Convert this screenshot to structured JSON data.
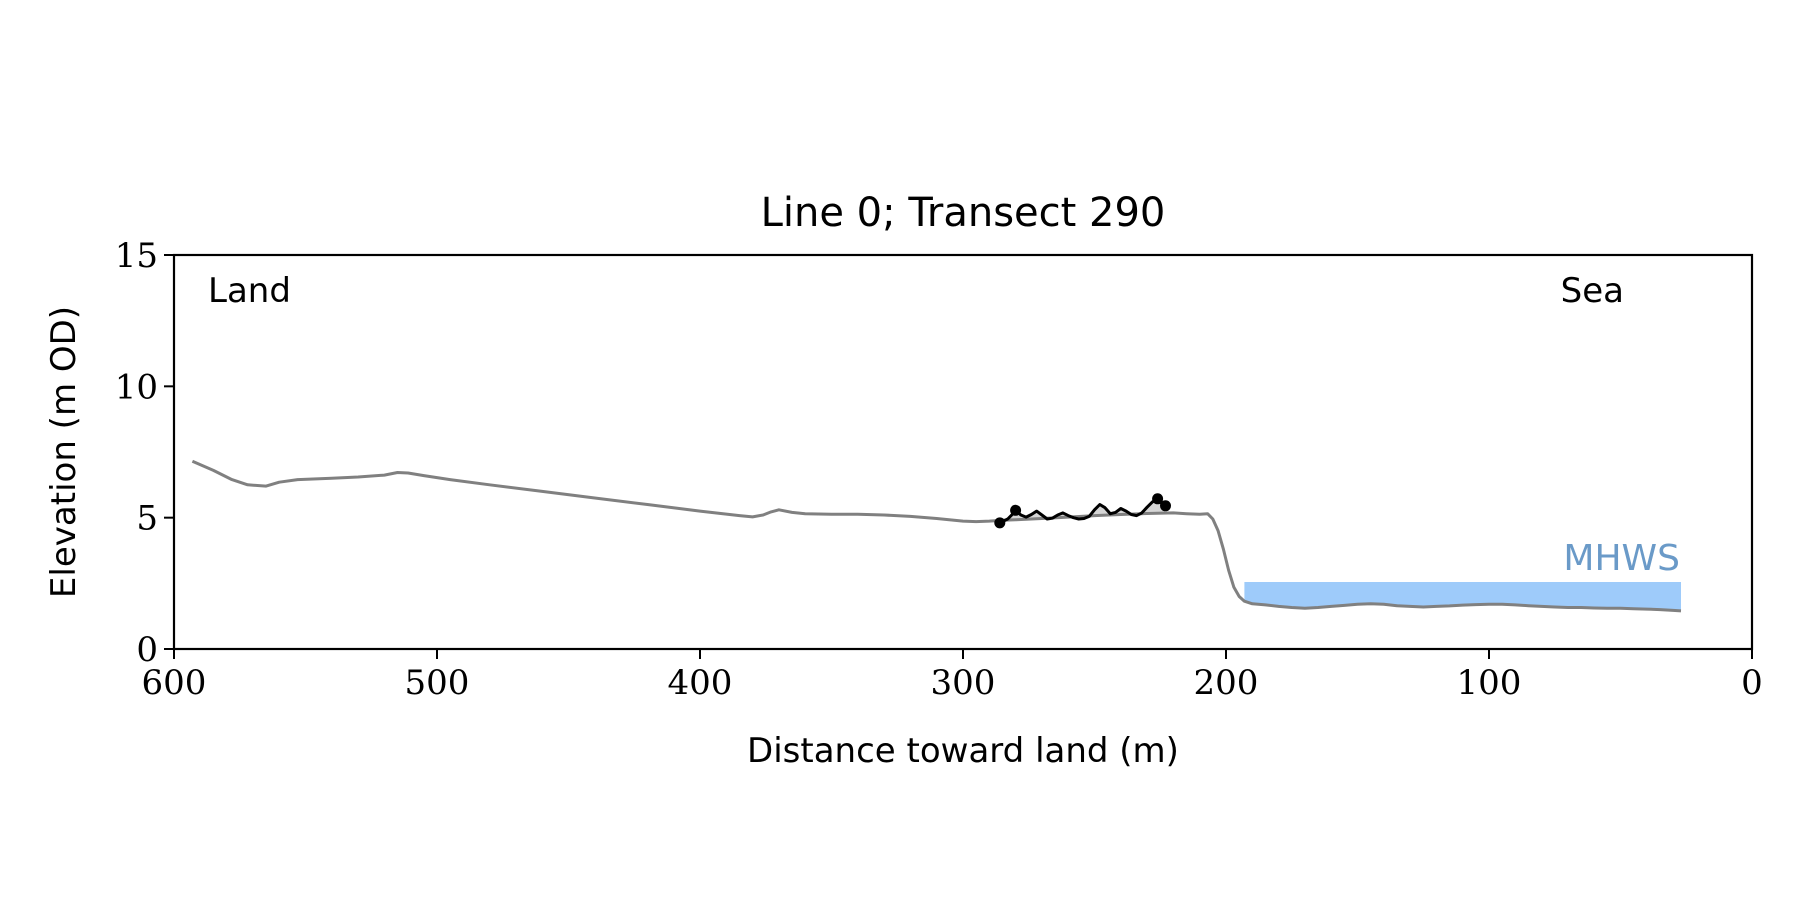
{
  "chart_data": {
    "type": "line",
    "title": "Line 0; Transect 290",
    "xlabel": "Distance toward land (m)",
    "ylabel": "Elevation (m OD)",
    "xlim": [
      600,
      0
    ],
    "ylim": [
      0,
      15
    ],
    "x_ticks": [
      600,
      500,
      400,
      300,
      200,
      100,
      0
    ],
    "y_ticks": [
      0,
      5,
      10,
      15
    ],
    "grid": false,
    "corner_labels": {
      "left": "Land",
      "right": "Sea"
    },
    "mhws": {
      "label": "MHWS",
      "x_start": 193,
      "x_end": 27,
      "level": 2.55
    },
    "colors": {
      "profile": "#808080",
      "highlight": "#000000",
      "mhws_fill": "#9ecbfa",
      "mhws_text": "#6a9ac8",
      "shade": "#cccccc"
    },
    "series": [
      {
        "role": "profile",
        "x": [
          593,
          585,
          578,
          572,
          565,
          560,
          553,
          540,
          530,
          520,
          515,
          511,
          505,
          495,
          480,
          460,
          440,
          420,
          400,
          385,
          380,
          376,
          373,
          370,
          365,
          360,
          350,
          340,
          330,
          320,
          310,
          300,
          295,
          290,
          285,
          280,
          270,
          260,
          250,
          240,
          230,
          220,
          215,
          210,
          207,
          205,
          203,
          201,
          199,
          197,
          195,
          193,
          190,
          185,
          180,
          175,
          170,
          165,
          160,
          155,
          150,
          145,
          140,
          135,
          130,
          125,
          120,
          115,
          110,
          105,
          100,
          95,
          90,
          85,
          80,
          75,
          70,
          65,
          60,
          55,
          50,
          45,
          40,
          35,
          30,
          27
        ],
        "y": [
          7.15,
          6.8,
          6.45,
          6.25,
          6.2,
          6.35,
          6.45,
          6.5,
          6.55,
          6.62,
          6.72,
          6.7,
          6.6,
          6.45,
          6.25,
          6.0,
          5.75,
          5.5,
          5.25,
          5.08,
          5.03,
          5.1,
          5.22,
          5.3,
          5.2,
          5.15,
          5.13,
          5.13,
          5.1,
          5.05,
          4.97,
          4.87,
          4.85,
          4.87,
          4.9,
          4.92,
          4.97,
          5.02,
          5.08,
          5.12,
          5.16,
          5.18,
          5.15,
          5.13,
          5.15,
          4.95,
          4.5,
          3.8,
          3.0,
          2.35,
          2.0,
          1.82,
          1.72,
          1.68,
          1.62,
          1.58,
          1.55,
          1.58,
          1.62,
          1.66,
          1.7,
          1.72,
          1.7,
          1.65,
          1.62,
          1.6,
          1.62,
          1.64,
          1.67,
          1.69,
          1.7,
          1.7,
          1.68,
          1.65,
          1.62,
          1.6,
          1.58,
          1.58,
          1.56,
          1.55,
          1.55,
          1.53,
          1.52,
          1.5,
          1.47,
          1.45
        ]
      },
      {
        "role": "highlight",
        "x": [
          286,
          283,
          281,
          280,
          278,
          276,
          274,
          272,
          270,
          268,
          266,
          264,
          262,
          260,
          258,
          256,
          254,
          252,
          250,
          248,
          246,
          244,
          242,
          240,
          238,
          236,
          234,
          232,
          230,
          228,
          226,
          225,
          223
        ],
        "y": [
          4.8,
          4.95,
          5.15,
          5.28,
          5.1,
          5.02,
          5.12,
          5.25,
          5.1,
          4.95,
          4.98,
          5.1,
          5.18,
          5.08,
          5.0,
          4.95,
          4.97,
          5.05,
          5.3,
          5.5,
          5.38,
          5.15,
          5.2,
          5.35,
          5.25,
          5.12,
          5.08,
          5.18,
          5.4,
          5.6,
          5.72,
          5.58,
          5.45
        ]
      }
    ],
    "markers": [
      {
        "x": 286,
        "y": 4.8
      },
      {
        "x": 280,
        "y": 5.28
      },
      {
        "x": 226,
        "y": 5.72
      },
      {
        "x": 223,
        "y": 5.45
      }
    ]
  }
}
